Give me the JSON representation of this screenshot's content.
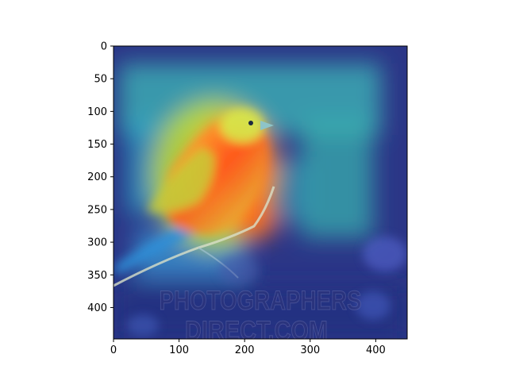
{
  "figure": {
    "background": "#ffffff",
    "image_kind": "Grad-CAM style heatmap overlay on a photo of a yellowhammer bird perched on a twig",
    "colormap": "jet",
    "watermark_lines": [
      "PHOTOGRAPHERS",
      "DIRECT.COM"
    ]
  },
  "axes": {
    "x_ticks": [
      0,
      100,
      200,
      300,
      400
    ],
    "y_ticks": [
      0,
      50,
      100,
      150,
      200,
      250,
      300,
      350,
      400
    ],
    "x_range": [
      0,
      448
    ],
    "y_range": [
      0,
      448
    ],
    "y_inverted": true
  },
  "colors": {
    "axis": "#000000",
    "heat_low": "#1e2a8c",
    "heat_mid": "#36c7a8",
    "heat_high": "#ff3010"
  }
}
